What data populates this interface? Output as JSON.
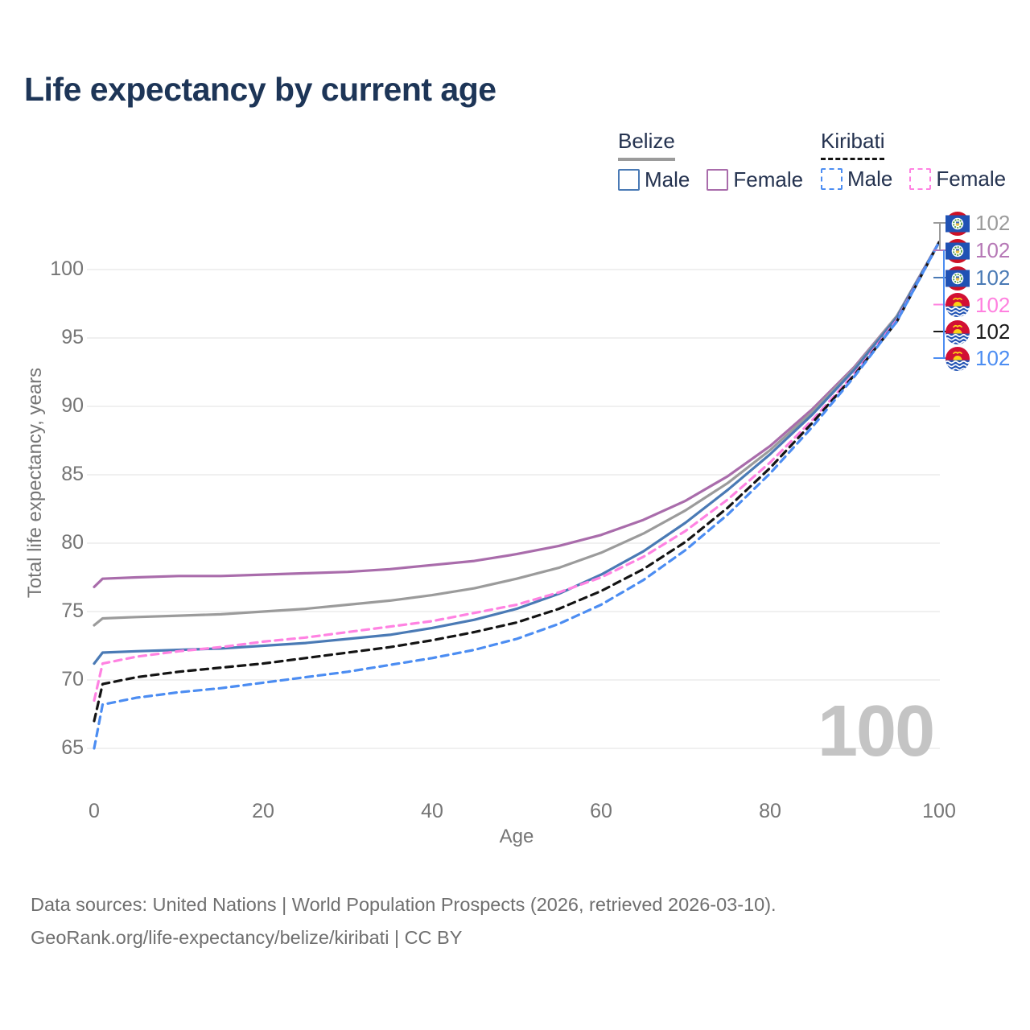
{
  "title": "Life expectancy by current age",
  "legend": {
    "belize": {
      "label": "Belize",
      "male": "Male",
      "female": "Female"
    },
    "kiribati": {
      "label": "Kiribati",
      "male": "Male",
      "female": "Female"
    }
  },
  "axes": {
    "x_title": "Age",
    "y_title": "Total life expectancy, years"
  },
  "watermark": "100",
  "footer": {
    "line1": "Data sources: United Nations | World Population Prospects (2026, retrieved 2026-03-10).",
    "line2": "GeoRank.org/life-expectancy/belize/kiribati | CC BY"
  },
  "colors": {
    "title": "#1d3557",
    "legend_text": "#24324f",
    "belize_group_line": "#9b9b9b",
    "kiribati_group_line": "#141414",
    "axis_text": "#757575",
    "gridline": "#ebebeb",
    "watermark": "#c4c4c4"
  },
  "chart_data": {
    "type": "line",
    "title": "Life expectancy by current age",
    "xlabel": "Age",
    "ylabel": "Total life expectancy, years",
    "x_ticks": [
      0,
      20,
      40,
      60,
      80,
      100
    ],
    "y_ticks": [
      65,
      70,
      75,
      80,
      85,
      90,
      95,
      100
    ],
    "xlim": [
      0,
      100
    ],
    "ylim": [
      63.5,
      103
    ],
    "grid": "horizontal",
    "legend_position": "top-right",
    "ages": [
      0,
      1,
      5,
      10,
      15,
      20,
      25,
      30,
      35,
      40,
      45,
      50,
      55,
      60,
      65,
      70,
      75,
      80,
      85,
      90,
      95,
      100
    ],
    "series": [
      {
        "name": "Belize Female",
        "country": "Belize",
        "sex": "Female",
        "style": "solid",
        "color": "#a96cab",
        "values": [
          76.8,
          77.4,
          77.5,
          77.6,
          77.6,
          77.7,
          77.8,
          77.9,
          78.1,
          78.4,
          78.7,
          79.2,
          79.8,
          80.6,
          81.7,
          83.1,
          84.9,
          87.1,
          89.8,
          92.9,
          96.6,
          102
        ]
      },
      {
        "name": "Belize (all)",
        "country": "Belize",
        "sex": "All",
        "style": "solid",
        "color": "#9b9b9b",
        "values": [
          74.0,
          74.5,
          74.6,
          74.7,
          74.8,
          75.0,
          75.2,
          75.5,
          75.8,
          76.2,
          76.7,
          77.4,
          78.2,
          79.3,
          80.7,
          82.4,
          84.4,
          86.8,
          89.6,
          92.8,
          96.6,
          102
        ]
      },
      {
        "name": "Belize Male",
        "country": "Belize",
        "sex": "Male",
        "style": "solid",
        "color": "#4a7ab5",
        "values": [
          71.2,
          72.0,
          72.1,
          72.2,
          72.3,
          72.5,
          72.7,
          73.0,
          73.3,
          73.8,
          74.4,
          75.2,
          76.3,
          77.7,
          79.4,
          81.5,
          83.9,
          86.5,
          89.4,
          92.7,
          96.5,
          102
        ]
      },
      {
        "name": "Kiribati Female",
        "country": "Kiribati",
        "sex": "Female",
        "style": "dashed",
        "color": "#ff82e2",
        "values": [
          68.5,
          71.2,
          71.7,
          72.1,
          72.4,
          72.8,
          73.1,
          73.5,
          73.9,
          74.3,
          74.9,
          75.5,
          76.4,
          77.5,
          79.0,
          80.9,
          83.2,
          85.9,
          89.0,
          92.4,
          96.3,
          102
        ]
      },
      {
        "name": "Kiribati (all)",
        "country": "Kiribati",
        "sex": "All",
        "style": "dashed",
        "color": "#141414",
        "values": [
          67.0,
          69.7,
          70.2,
          70.6,
          70.9,
          71.2,
          71.6,
          72.0,
          72.4,
          72.9,
          73.5,
          74.2,
          75.2,
          76.5,
          78.1,
          80.1,
          82.6,
          85.5,
          88.8,
          92.3,
          96.2,
          102
        ]
      },
      {
        "name": "Kiribati Male",
        "country": "Kiribati",
        "sex": "Male",
        "style": "dashed",
        "color": "#4c8df2",
        "values": [
          65.0,
          68.2,
          68.7,
          69.1,
          69.4,
          69.8,
          70.2,
          70.6,
          71.1,
          71.6,
          72.2,
          73.0,
          74.1,
          75.5,
          77.3,
          79.5,
          82.1,
          85.1,
          88.5,
          92.2,
          96.2,
          102
        ]
      }
    ],
    "end_labels": [
      {
        "value": "102",
        "series": "Belize (all)",
        "flag": "belize",
        "color": "#9b9b9b"
      },
      {
        "value": "102",
        "series": "Belize Female",
        "flag": "belize",
        "color": "#b678b6"
      },
      {
        "value": "102",
        "series": "Belize Male",
        "flag": "belize",
        "color": "#4a7ab5"
      },
      {
        "value": "102",
        "series": "Kiribati Female",
        "flag": "kiribati",
        "color": "#ff80df"
      },
      {
        "value": "102",
        "series": "Kiribati (all)",
        "flag": "kiribati",
        "color": "#1a1a1a"
      },
      {
        "value": "102",
        "series": "Kiribati Male",
        "flag": "kiribati",
        "color": "#4c8df2"
      }
    ]
  }
}
